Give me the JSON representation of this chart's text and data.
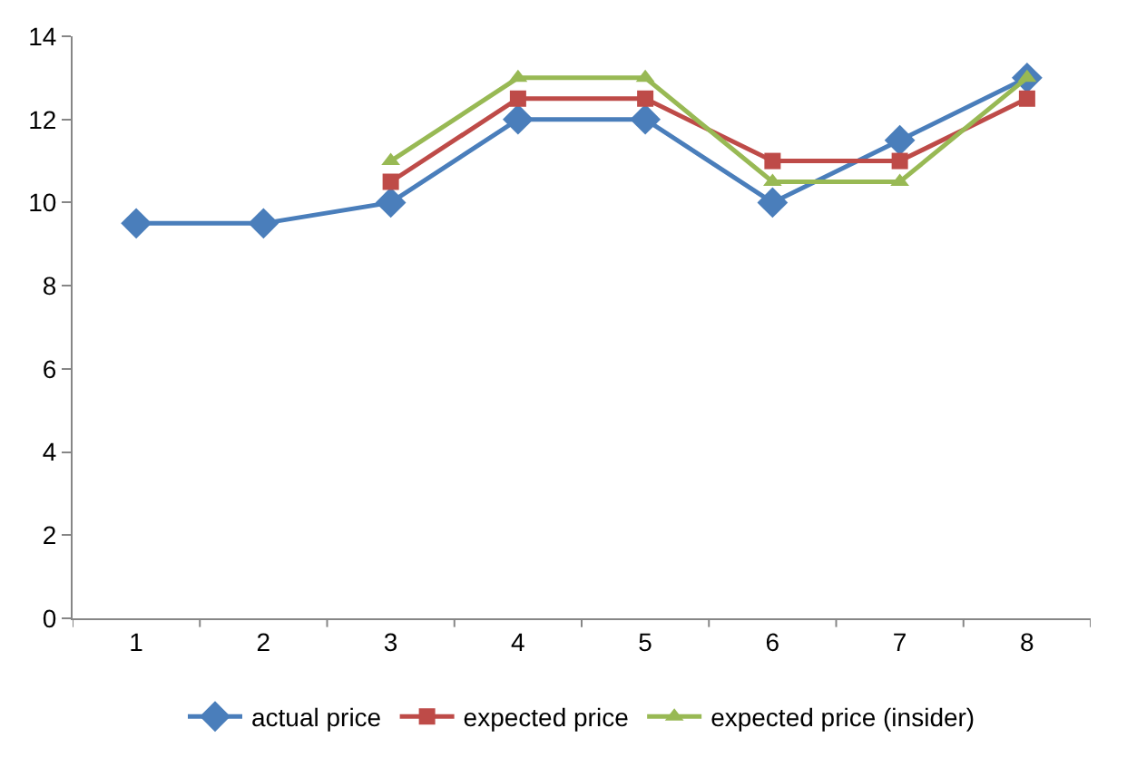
{
  "chart_data": {
    "type": "line",
    "categories": [
      "1",
      "2",
      "3",
      "4",
      "5",
      "6",
      "7",
      "8"
    ],
    "series": [
      {
        "name": "actual price",
        "color": "#4a7ebb",
        "marker": "diamond",
        "values": [
          9.5,
          9.5,
          10,
          12,
          12,
          10,
          11.5,
          13
        ]
      },
      {
        "name": "expected price",
        "color": "#be4b48",
        "marker": "square",
        "values": [
          null,
          null,
          10.5,
          12.5,
          12.5,
          11,
          11,
          12.5
        ]
      },
      {
        "name": "expected price (insider)",
        "color": "#98b954",
        "marker": "triangle",
        "values": [
          null,
          null,
          11,
          13,
          13,
          10.5,
          10.5,
          13
        ]
      }
    ],
    "ylim": [
      0,
      14
    ],
    "yticks": [
      0,
      2,
      4,
      6,
      8,
      10,
      12,
      14
    ],
    "legend": "bottom",
    "line_style": "solid"
  }
}
